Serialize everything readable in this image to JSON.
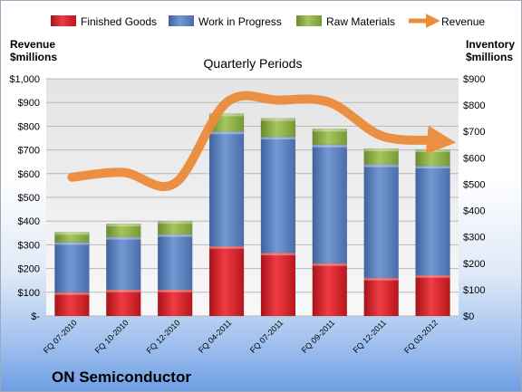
{
  "chart_data": {
    "type": "bar",
    "stacked": true,
    "title": "Quarterly Periods",
    "company": "ON Semiconductor",
    "left_axis_title": [
      "Revenue",
      "$millions"
    ],
    "right_axis_title": [
      "Inventory",
      "$millions"
    ],
    "categories": [
      "FQ 07-2010",
      "FQ 10-2010",
      "FQ 12-2010",
      "FQ 04-2011",
      "FQ 07-2011",
      "FQ 09-2011",
      "FQ 12-2011",
      "FQ 03-2012"
    ],
    "left_ticks": [
      "$-",
      "$100",
      "$200",
      "$300",
      "$400",
      "$500",
      "$600",
      "$700",
      "$800",
      "$900",
      "$1,000"
    ],
    "right_ticks": [
      "$0",
      "$100",
      "$200",
      "$300",
      "$400",
      "$500",
      "$600",
      "$700",
      "$800",
      "$900"
    ],
    "left_ylim": [
      0,
      1000
    ],
    "right_ylim": [
      0,
      900
    ],
    "grid": true,
    "legend_placement": "top",
    "series": [
      {
        "name": "Finished Goods",
        "axis": "right",
        "kind": "bar",
        "color": "#e0282f",
        "values": [
          90,
          100,
          100,
          265,
          240,
          200,
          145,
          155
        ]
      },
      {
        "name": "Work in Progress",
        "axis": "right",
        "kind": "bar",
        "color": "#5b80bf",
        "values": [
          190,
          200,
          210,
          435,
          440,
          450,
          430,
          415
        ]
      },
      {
        "name": "Raw Materials",
        "axis": "right",
        "kind": "bar",
        "color": "#8fb04a",
        "values": [
          38,
          50,
          50,
          68,
          70,
          60,
          60,
          62
        ]
      },
      {
        "name": "Revenue",
        "axis": "left",
        "kind": "line",
        "color": "#ec8b3a",
        "values": [
          585,
          605,
          560,
          900,
          910,
          900,
          760,
          740
        ]
      }
    ]
  }
}
